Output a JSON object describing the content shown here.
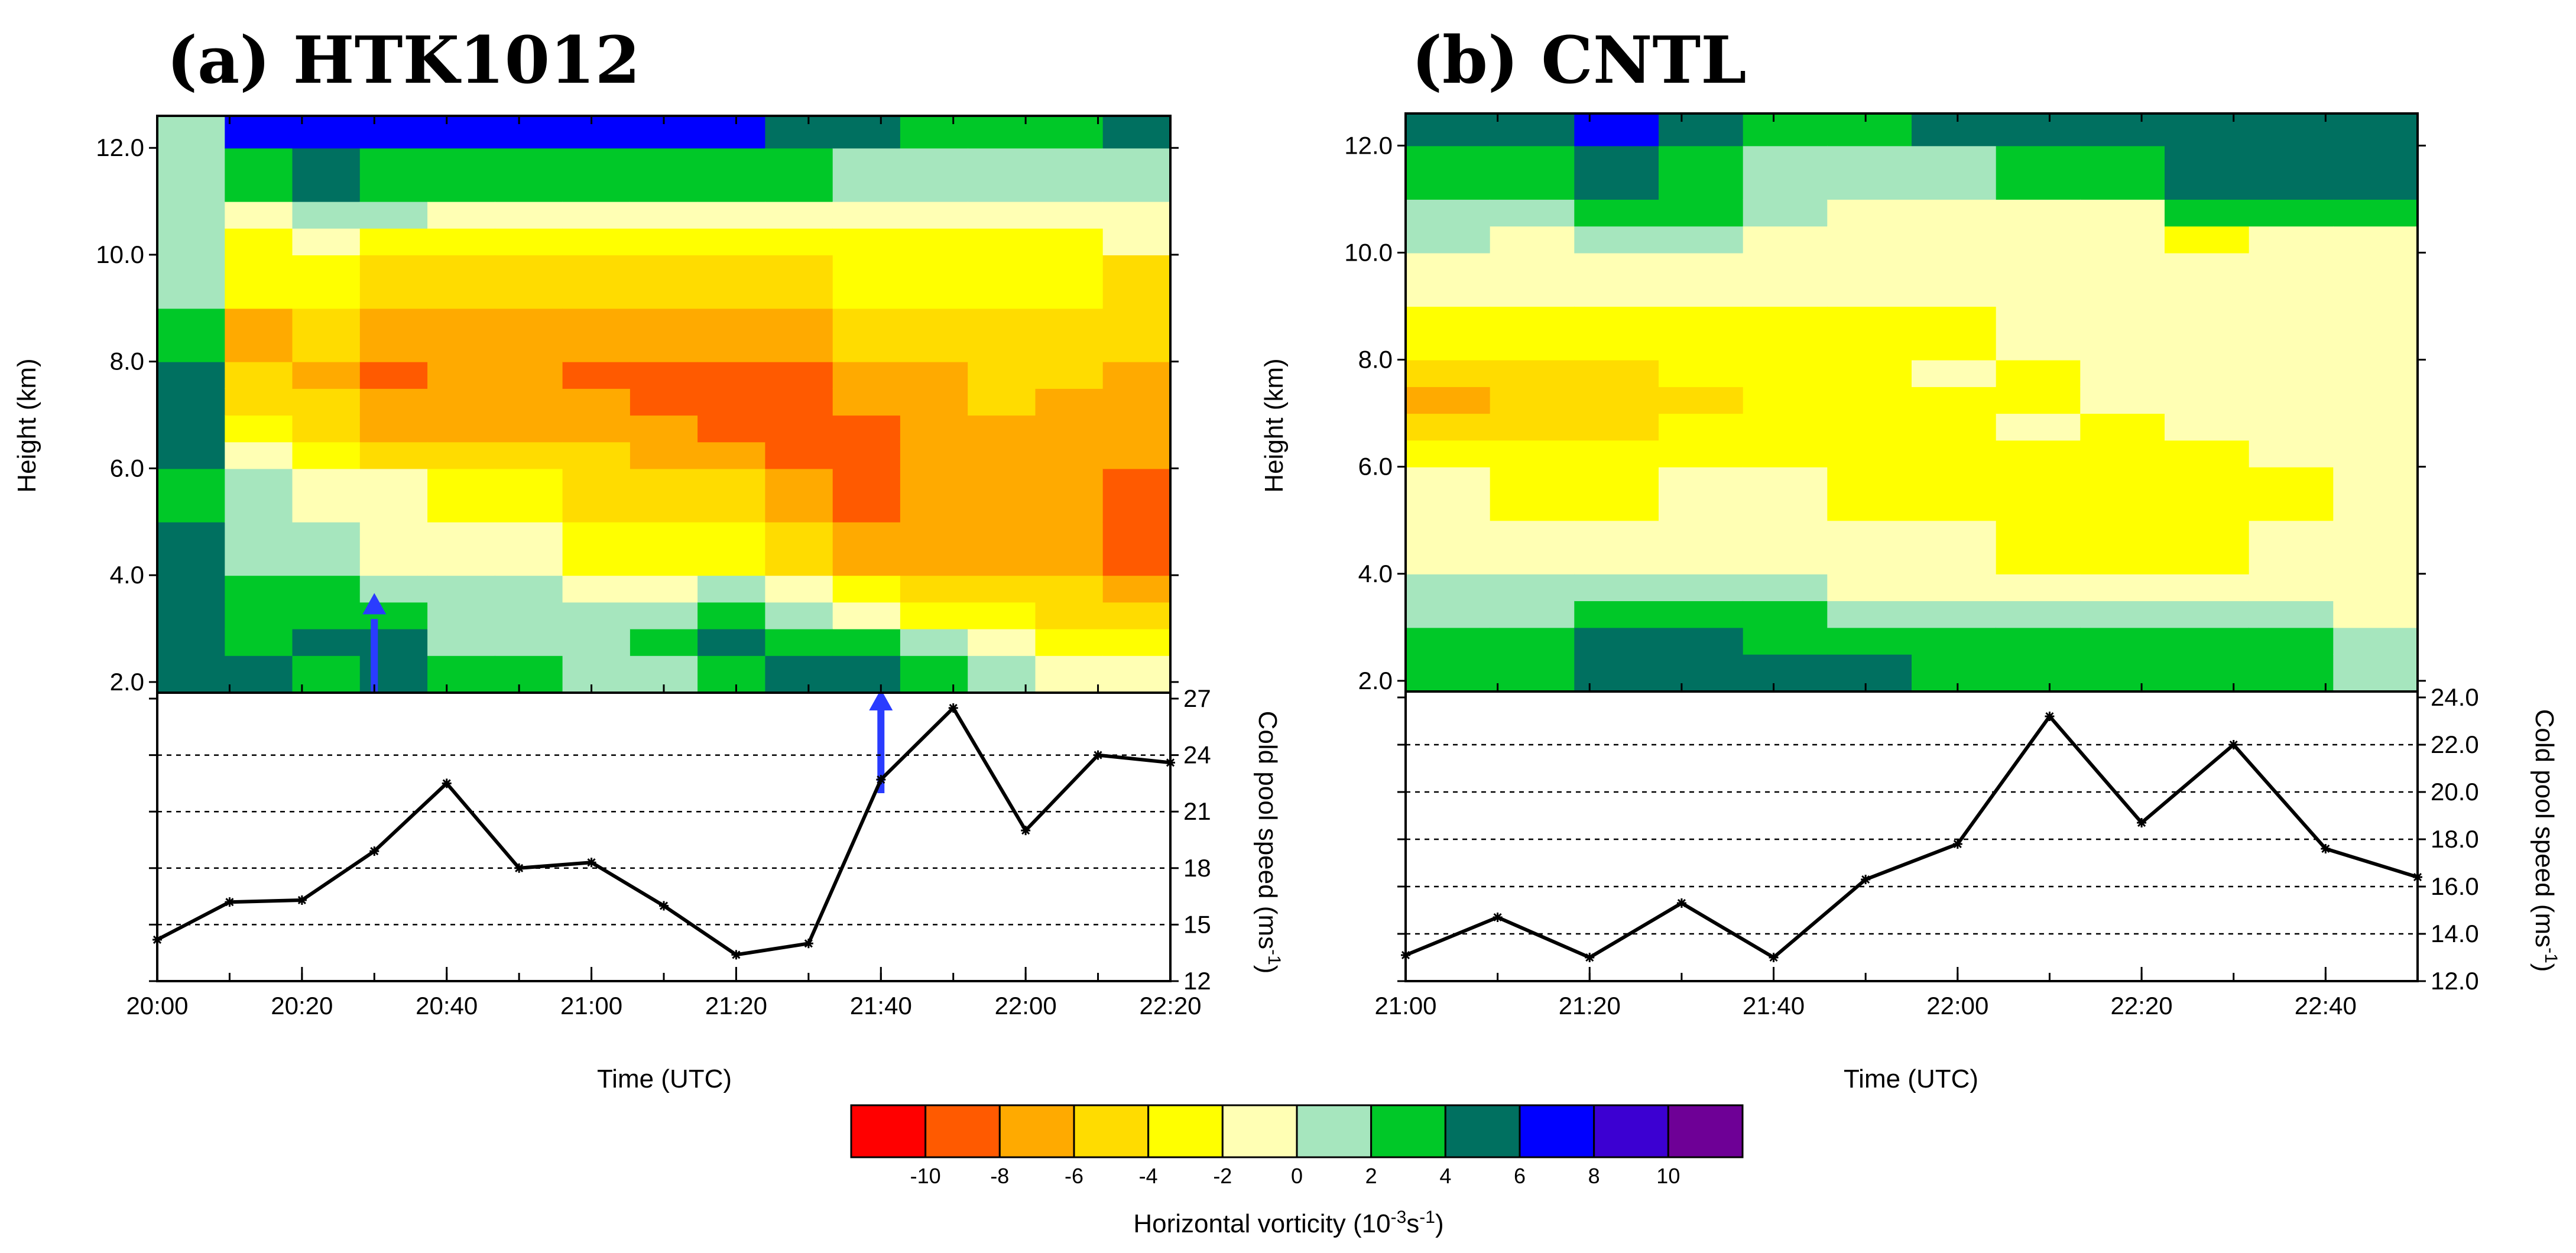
{
  "colorbar": {
    "title": "Horizontal vorticity (10",
    "title_exp1": "-3",
    "title_mid": "s",
    "title_exp2": "-1",
    "title_end": ")",
    "levels": [
      "-10",
      "-8",
      "-6",
      "-4",
      "-2",
      "0",
      "2",
      "4",
      "6",
      "8",
      "10"
    ],
    "colors": [
      "#ff0000",
      "#ff5a00",
      "#ffaa00",
      "#ffdc00",
      "#ffff00",
      "#ffffb4",
      "#a6e6be",
      "#00c828",
      "#007060",
      "#0000ff",
      "#3c00d2",
      "#6e0096"
    ]
  },
  "chart_data": [
    {
      "id": "a",
      "type": "heatmap",
      "title": "(a) HTK1012",
      "ylabel": "Height (km)",
      "yticks": [
        "12.0",
        "10.0",
        "8.0",
        "6.0",
        "4.0",
        "2.0"
      ],
      "ylim": [
        1.8,
        12.6
      ],
      "x": [
        0,
        10,
        20,
        30,
        40,
        50,
        60,
        70,
        80,
        90,
        100,
        110,
        120,
        130,
        140
      ],
      "levels_km": [
        1.8,
        2.5,
        3.0,
        3.5,
        4.0,
        5.0,
        6.0,
        6.5,
        7.0,
        7.5,
        8.0,
        9.0,
        10.0,
        10.5,
        11.0,
        12.0,
        12.6
      ],
      "vorticity": [
        [
          4,
          4,
          4,
          4,
          4,
          2,
          4,
          4,
          4,
          4,
          2,
          0,
          0,
          0,
          0,
          0,
          0
        ],
        [
          4,
          2,
          2,
          2,
          0,
          0,
          -2,
          -4,
          -6,
          -6,
          -8,
          -4,
          -4,
          -2,
          2,
          6,
          6
        ],
        [
          2,
          4,
          2,
          2,
          0,
          -2,
          -4,
          -6,
          -6,
          -8,
          -6,
          -4,
          -2,
          0,
          4,
          6,
          6
        ],
        [
          4,
          4,
          2,
          0,
          -2,
          -2,
          -6,
          -8,
          -8,
          -10,
          -8,
          -6,
          -4,
          0,
          2,
          6,
          6
        ],
        [
          2,
          0,
          0,
          0,
          -2,
          -4,
          -6,
          -8,
          -8,
          -8,
          -8,
          -6,
          -4,
          -2,
          2,
          6,
          6
        ],
        [
          2,
          0,
          0,
          0,
          -2,
          -4,
          -6,
          -8,
          -8,
          -8,
          -8,
          -6,
          -4,
          -2,
          2,
          6,
          6
        ],
        [
          0,
          0,
          0,
          -2,
          -4,
          -6,
          -6,
          -8,
          -8,
          -10,
          -8,
          -6,
          -4,
          -2,
          2,
          6,
          6
        ],
        [
          0,
          2,
          0,
          -2,
          -4,
          -6,
          -8,
          -8,
          -10,
          -10,
          -8,
          -6,
          -4,
          -2,
          2,
          6,
          8
        ],
        [
          2,
          4,
          2,
          0,
          -4,
          -6,
          -8,
          -10,
          -10,
          -10,
          -8,
          -6,
          -4,
          -2,
          2,
          6,
          6
        ],
        [
          4,
          2,
          0,
          -2,
          -6,
          -8,
          -10,
          -10,
          -10,
          -10,
          -8,
          -6,
          -4,
          -2,
          2,
          4,
          6
        ],
        [
          4,
          2,
          -2,
          -4,
          -8,
          -10,
          -10,
          -10,
          -8,
          -8,
          -6,
          -4,
          -4,
          -2,
          0,
          4,
          8
        ],
        [
          2,
          0,
          -4,
          -6,
          -8,
          -8,
          -8,
          -8,
          -8,
          -8,
          -6,
          -4,
          -4,
          -2,
          0,
          2,
          4
        ],
        [
          0,
          -2,
          -4,
          -6,
          -8,
          -8,
          -8,
          -8,
          -6,
          -6,
          -6,
          -4,
          -4,
          -2,
          0,
          2,
          4
        ],
        [
          -2,
          -4,
          -6,
          -6,
          -8,
          -8,
          -8,
          -8,
          -8,
          -6,
          -6,
          -4,
          -4,
          -2,
          0,
          2,
          4
        ],
        [
          -2,
          -4,
          -6,
          -8,
          -10,
          -10,
          -8,
          -8,
          -8,
          -8,
          -6,
          -6,
          -2,
          -2,
          0,
          4,
          6
        ]
      ],
      "arrows": [
        30,
        100
      ],
      "cold_pool": {
        "ylabel": "Cold pool speed (ms",
        "ylabel_exp": "-1",
        "ylabel_end": ")",
        "yticks": [
          "27",
          "24",
          "21",
          "18",
          "15",
          "12"
        ],
        "ylim": [
          12,
          27
        ],
        "values": [
          14.2,
          16.2,
          16.3,
          18.9,
          22.5,
          18.0,
          18.3,
          16.0,
          13.4,
          14.0,
          22.7,
          26.5,
          20.0,
          24.0,
          23.6
        ]
      },
      "xlabel": "Time (UTC)",
      "xtick_labels": [
        "20:00",
        "20:20",
        "20:40",
        "21:00",
        "21:20",
        "21:40",
        "22:00",
        "22:20"
      ]
    },
    {
      "id": "b",
      "type": "heatmap",
      "title": "(b) CNTL",
      "ylabel": "Height (km)",
      "yticks": [
        "12.0",
        "10.0",
        "8.0",
        "6.0",
        "4.0",
        "2.0"
      ],
      "ylim": [
        1.8,
        12.6
      ],
      "x": [
        0,
        10,
        20,
        30,
        40,
        50,
        60,
        70,
        80,
        90,
        100,
        110
      ],
      "levels_km": [
        1.8,
        2.5,
        3.0,
        3.5,
        4.0,
        5.0,
        6.0,
        6.5,
        7.0,
        7.5,
        8.0,
        9.0,
        10.0,
        10.5,
        11.0,
        12.0,
        12.6
      ],
      "vorticity": [
        [
          2,
          2,
          0,
          0,
          -2,
          -2,
          -4,
          -6,
          -8,
          -6,
          -4,
          -2,
          0,
          0,
          2,
          4,
          4
        ],
        [
          2,
          2,
          0,
          0,
          -2,
          -4,
          -4,
          -6,
          -6,
          -6,
          -4,
          -2,
          -2,
          0,
          2,
          4,
          6
        ],
        [
          4,
          4,
          2,
          0,
          -2,
          -4,
          -4,
          -6,
          -6,
          -6,
          -4,
          -2,
          0,
          2,
          4,
          6,
          8
        ],
        [
          4,
          4,
          2,
          0,
          -2,
          -2,
          -4,
          -4,
          -6,
          -4,
          -4,
          -2,
          0,
          2,
          2,
          4,
          6
        ],
        [
          4,
          2,
          2,
          0,
          -2,
          -2,
          -4,
          -4,
          -4,
          -4,
          -4,
          -2,
          -2,
          0,
          0,
          2,
          4
        ],
        [
          4,
          2,
          0,
          -2,
          -2,
          -4,
          -4,
          -4,
          -4,
          -4,
          -4,
          -2,
          -2,
          -2,
          0,
          2,
          2
        ],
        [
          2,
          2,
          0,
          -2,
          -2,
          -4,
          -4,
          -4,
          -4,
          -2,
          -4,
          -2,
          -2,
          -2,
          0,
          4,
          4
        ],
        [
          2,
          2,
          0,
          -2,
          -4,
          -4,
          -4,
          -2,
          -4,
          -4,
          -2,
          -2,
          -2,
          -2,
          2,
          4,
          4
        ],
        [
          2,
          2,
          0,
          -2,
          -4,
          -4,
          -4,
          -4,
          -2,
          -2,
          -2,
          -2,
          -2,
          -2,
          2,
          4,
          4
        ],
        [
          2,
          2,
          0,
          -2,
          -4,
          -4,
          -4,
          -2,
          -2,
          -2,
          -2,
          -2,
          -4,
          2,
          4,
          4,
          4
        ],
        [
          2,
          2,
          0,
          -2,
          -2,
          -4,
          -2,
          -2,
          -2,
          -2,
          -2,
          -2,
          -2,
          2,
          4,
          4,
          4
        ],
        [
          0,
          0,
          -2,
          -2,
          -2,
          -2,
          -2,
          -2,
          -2,
          -2,
          -2,
          -2,
          -2,
          2,
          4,
          4,
          4
        ]
      ],
      "arrows": [],
      "cold_pool": {
        "ylabel": "Cold pool speed (ms",
        "ylabel_exp": "-1",
        "ylabel_end": ")",
        "yticks": [
          "24.0",
          "22.0",
          "20.0",
          "18.0",
          "16.0",
          "14.0",
          "12.0"
        ],
        "ylim": [
          12,
          24
        ],
        "values": [
          13.1,
          14.7,
          13.0,
          15.3,
          13.0,
          16.3,
          17.8,
          23.2,
          18.7,
          22.0,
          17.6,
          16.4
        ]
      },
      "xlabel": "Time (UTC)",
      "xtick_labels": [
        "21:00",
        "21:20",
        "21:40",
        "22:00",
        "22:20",
        "22:40"
      ]
    }
  ]
}
